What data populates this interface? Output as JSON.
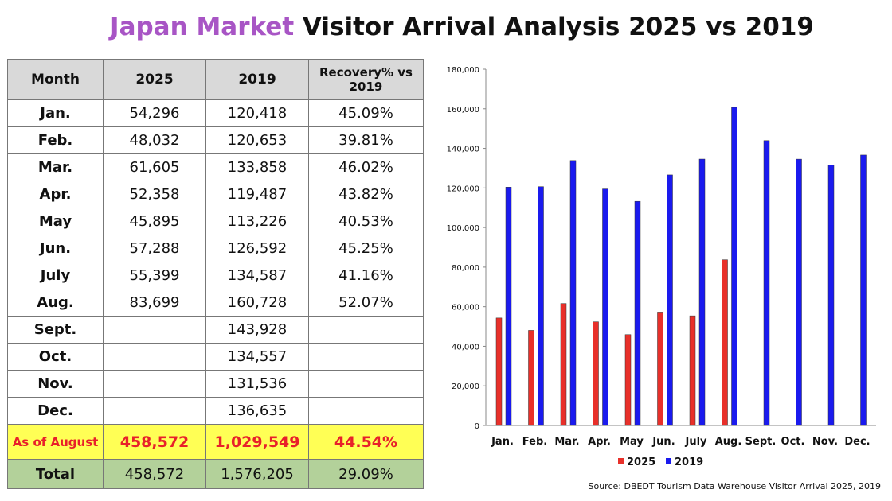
{
  "title": {
    "highlight": "Japan Market",
    "rest": " Visitor Arrival Analysis 2025 vs 2019"
  },
  "table": {
    "headers": [
      "Month",
      "2025",
      "2019",
      "Recovery% vs 2019"
    ],
    "rows": [
      [
        "Jan.",
        "54,296",
        "120,418",
        "45.09%"
      ],
      [
        "Feb.",
        "48,032",
        "120,653",
        "39.81%"
      ],
      [
        "Mar.",
        "61,605",
        "133,858",
        "46.02%"
      ],
      [
        "Apr.",
        "52,358",
        "119,487",
        "43.82%"
      ],
      [
        "May",
        "45,895",
        "113,226",
        "40.53%"
      ],
      [
        "Jun.",
        "57,288",
        "126,592",
        "45.25%"
      ],
      [
        "July",
        "55,399",
        "134,587",
        "41.16%"
      ],
      [
        "Aug.",
        "83,699",
        "160,728",
        "52.07%"
      ],
      [
        "Sept.",
        "",
        "143,928",
        ""
      ],
      [
        "Oct.",
        "",
        "134,557",
        ""
      ],
      [
        "Nov.",
        "",
        "131,536",
        ""
      ],
      [
        "Dec.",
        "",
        "136,635",
        ""
      ]
    ],
    "as_of": [
      "As of August",
      "458,572",
      "1,029,549",
      "44.54%"
    ],
    "total": [
      "Total",
      "458,572",
      "1,576,205",
      "29.09%"
    ]
  },
  "chart_data": {
    "type": "bar",
    "categories": [
      "Jan.",
      "Feb.",
      "Mar.",
      "Apr.",
      "May",
      "Jun.",
      "July",
      "Aug.",
      "Sept.",
      "Oct.",
      "Nov.",
      "Dec."
    ],
    "series": [
      {
        "name": "2025",
        "color": "#e8302a",
        "values": [
          54296,
          48032,
          61605,
          52358,
          45895,
          57288,
          55399,
          83699,
          null,
          null,
          null,
          null
        ]
      },
      {
        "name": "2019",
        "color": "#1a1aee",
        "values": [
          120418,
          120653,
          133858,
          119487,
          113226,
          126592,
          134587,
          160728,
          143928,
          134557,
          131536,
          136635
        ]
      }
    ],
    "ylim": [
      0,
      180000
    ],
    "yticks": [
      "0",
      "20,000",
      "40,000",
      "60,000",
      "80,000",
      "100,000",
      "120,000",
      "140,000",
      "160,000",
      "180,000"
    ],
    "legend": "bottom",
    "grid": false
  },
  "source": "Source: DBEDT Tourism Data Warehouse Visitor Arrival 2025, 2019"
}
